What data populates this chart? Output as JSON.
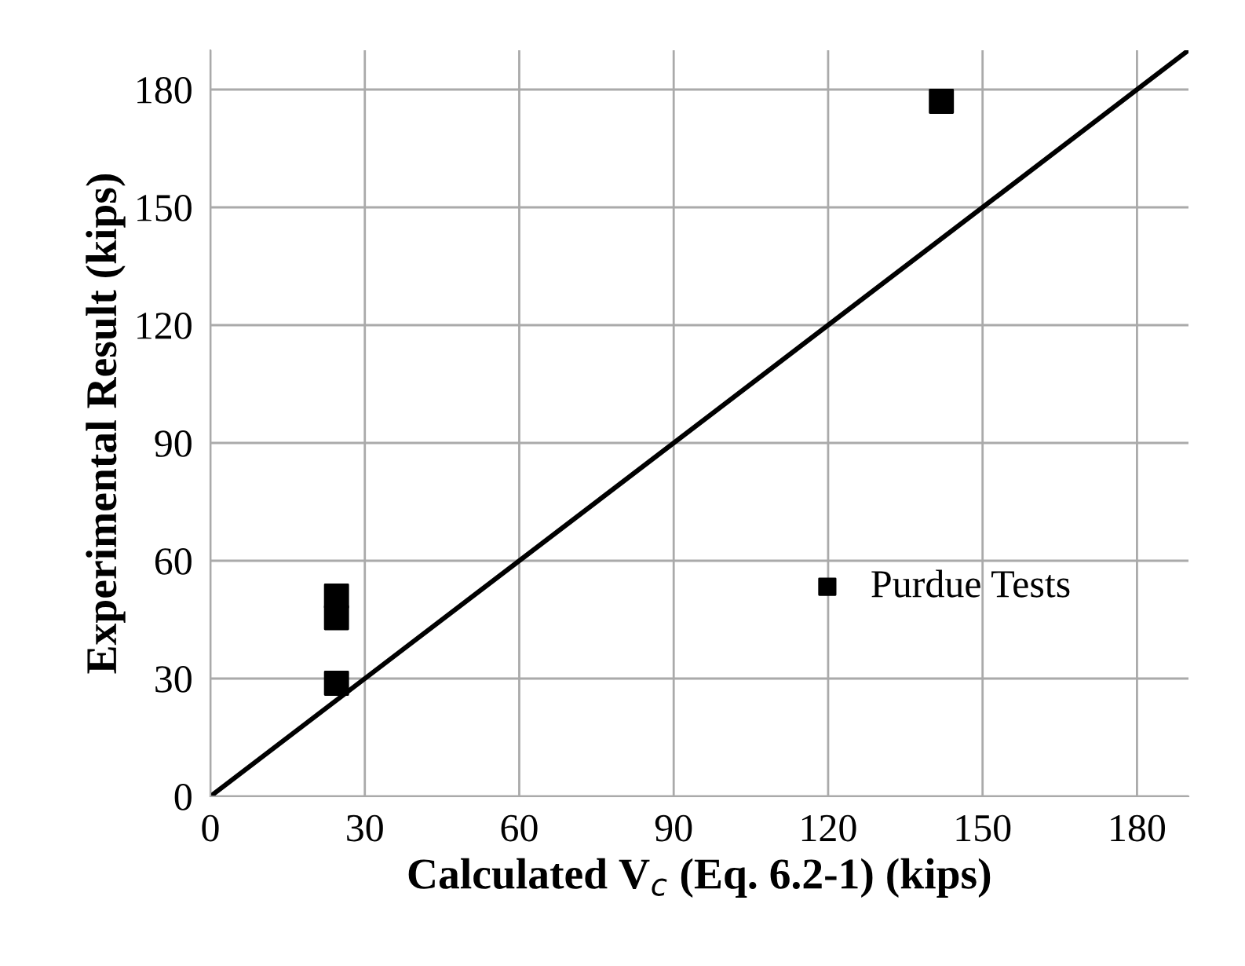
{
  "chart_data": {
    "type": "scatter",
    "xlabel": "Calculated V$_{c}$ (Eq. 6.2-1) (kips)",
    "ylabel": "Experimental Result (kips)",
    "xlim": [
      0,
      190
    ],
    "ylim": [
      0,
      190
    ],
    "xticks": [
      0,
      30,
      60,
      90,
      120,
      150,
      180
    ],
    "yticks": [
      0,
      30,
      60,
      90,
      120,
      150,
      180
    ],
    "grid": true,
    "legend": "center right",
    "marker": "square",
    "series": [
      {
        "name": "Purdue Tests",
        "color": "#000000",
        "x": [
          24.5,
          24.5,
          24.5,
          142
        ],
        "values": [
          51,
          45.5,
          28.8,
          177
        ]
      },
      {
        "type": "line",
        "color": "#000000",
        "x": [
          0,
          190
        ],
        "values": [
          0,
          190
        ],
        "marker": "none",
        "line_style": "solid"
      }
    ]
  }
}
